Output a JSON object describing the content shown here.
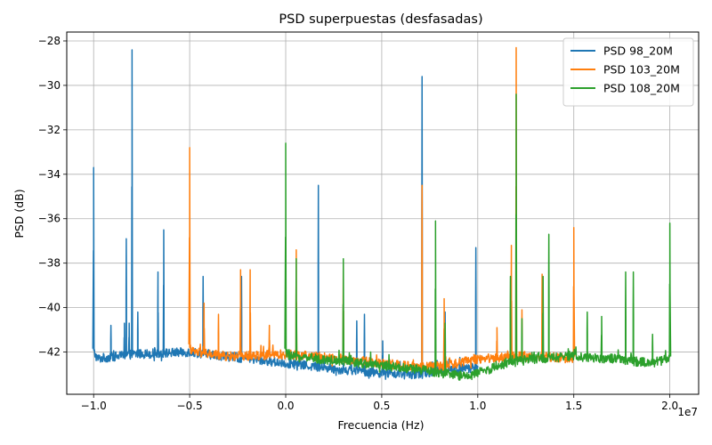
{
  "chart_data": {
    "type": "line",
    "title": "PSD superpuestas (desfasadas)",
    "xlabel": "Frecuencia (Hz)",
    "ylabel": "PSD (dB)",
    "x_offset_label": "1e7",
    "xlim": [
      -1.14,
      2.15
    ],
    "ylim": [
      -43.9,
      -27.6
    ],
    "xticks": [
      -1.0,
      -0.5,
      0.0,
      0.5,
      1.0,
      1.5,
      2.0
    ],
    "xtick_labels": [
      "−1.0",
      "−0.5",
      "0.0",
      "0.5",
      "1.0",
      "1.5",
      "2.0"
    ],
    "yticks": [
      -42,
      -40,
      -38,
      -36,
      -34,
      -32,
      -30,
      -28
    ],
    "ytick_labels": [
      "−42",
      "−40",
      "−38",
      "−36",
      "−34",
      "−32",
      "−30",
      "−28"
    ],
    "grid": true,
    "legend_position": "top-right",
    "series": [
      {
        "name": "PSD 98_20M",
        "color": "#1f77b4",
        "x_range": [
          -1.0,
          1.0
        ],
        "baseline": [
          [
            -1.0,
            -42.0
          ],
          [
            -0.98,
            -42.3
          ],
          [
            -0.8,
            -42.1
          ],
          [
            -0.5,
            -42.0
          ],
          [
            -0.2,
            -42.3
          ],
          [
            0.0,
            -42.5
          ],
          [
            0.3,
            -42.8
          ],
          [
            0.6,
            -43.0
          ],
          [
            0.7,
            -43.0
          ],
          [
            0.8,
            -42.8
          ],
          [
            1.0,
            -42.7
          ]
        ],
        "peaks": [
          [
            -1.0,
            -33.7
          ],
          [
            -0.91,
            -40.8
          ],
          [
            -0.84,
            -40.7
          ],
          [
            -0.83,
            -36.9
          ],
          [
            -0.815,
            -40.7
          ],
          [
            -0.8,
            -28.4
          ],
          [
            -0.77,
            -40.2
          ],
          [
            -0.665,
            -38.4
          ],
          [
            -0.635,
            -36.5
          ],
          [
            -0.43,
            -38.6
          ],
          [
            -0.23,
            -38.6
          ],
          [
            0.17,
            -34.5
          ],
          [
            0.37,
            -40.6
          ],
          [
            0.41,
            -40.3
          ],
          [
            0.505,
            -41.5
          ],
          [
            0.71,
            -29.6
          ],
          [
            0.83,
            -40.2
          ],
          [
            0.99,
            -37.3
          ]
        ]
      },
      {
        "name": "PSD 103_20M",
        "color": "#ff7f0e",
        "x_range": [
          -0.5,
          1.5
        ],
        "baseline": [
          [
            -0.5,
            -41.8
          ],
          [
            -0.48,
            -42.0
          ],
          [
            -0.3,
            -42.2
          ],
          [
            0.0,
            -42.1
          ],
          [
            0.3,
            -42.3
          ],
          [
            0.5,
            -42.5
          ],
          [
            0.7,
            -42.7
          ],
          [
            0.85,
            -42.6
          ],
          [
            1.0,
            -42.3
          ],
          [
            1.2,
            -42.2
          ],
          [
            1.35,
            -42.2
          ],
          [
            1.5,
            -42.3
          ]
        ],
        "peaks": [
          [
            -0.5,
            -32.8
          ],
          [
            -0.425,
            -39.8
          ],
          [
            -0.35,
            -40.3
          ],
          [
            -0.235,
            -38.3
          ],
          [
            -0.185,
            -38.3
          ],
          [
            -0.085,
            -40.8
          ],
          [
            0.055,
            -37.4
          ],
          [
            0.3,
            -38.0
          ],
          [
            0.71,
            -34.5
          ],
          [
            0.825,
            -39.6
          ],
          [
            1.1,
            -40.9
          ],
          [
            1.175,
            -37.2
          ],
          [
            1.2,
            -28.3
          ],
          [
            1.23,
            -40.1
          ],
          [
            1.335,
            -38.5
          ],
          [
            1.5,
            -36.4
          ]
        ]
      },
      {
        "name": "PSD 108_20M",
        "color": "#2ca02c",
        "x_range": [
          0.0,
          2.0
        ],
        "baseline": [
          [
            0.0,
            -42.0
          ],
          [
            0.02,
            -42.2
          ],
          [
            0.3,
            -42.4
          ],
          [
            0.5,
            -42.6
          ],
          [
            0.7,
            -42.8
          ],
          [
            0.85,
            -43.0
          ],
          [
            0.95,
            -43.1
          ],
          [
            1.05,
            -42.8
          ],
          [
            1.15,
            -42.5
          ],
          [
            1.3,
            -42.3
          ],
          [
            1.5,
            -42.2
          ],
          [
            1.7,
            -42.3
          ],
          [
            1.9,
            -42.5
          ],
          [
            2.0,
            -42.3
          ]
        ],
        "peaks": [
          [
            0.0,
            -32.6
          ],
          [
            0.055,
            -37.8
          ],
          [
            0.3,
            -37.8
          ],
          [
            0.78,
            -36.1
          ],
          [
            0.83,
            -40.7
          ],
          [
            1.17,
            -38.6
          ],
          [
            1.2,
            -30.4
          ],
          [
            1.23,
            -40.5
          ],
          [
            1.34,
            -38.6
          ],
          [
            1.37,
            -36.7
          ],
          [
            1.57,
            -40.2
          ],
          [
            1.645,
            -40.4
          ],
          [
            1.77,
            -38.4
          ],
          [
            1.81,
            -38.4
          ],
          [
            1.91,
            -41.2
          ],
          [
            2.0,
            -36.2
          ]
        ]
      }
    ]
  }
}
